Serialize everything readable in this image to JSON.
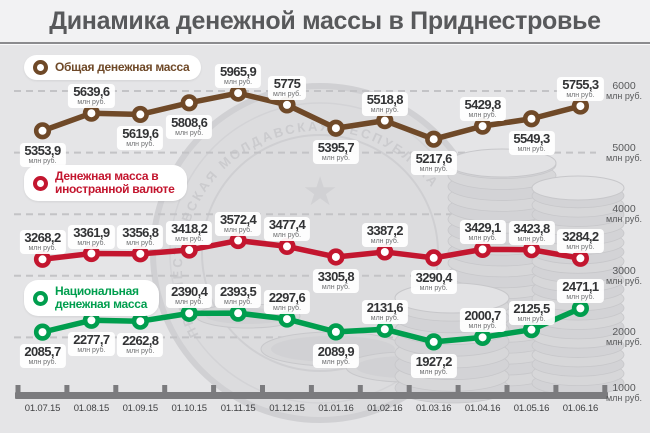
{
  "title": "Динамика денежной массы в Приднестровье",
  "axis": {
    "unit": "млн руб.",
    "y_ticks": [
      6000,
      5000,
      4000,
      3000,
      2000,
      1000
    ],
    "x_labels": [
      "01.07.15",
      "01.08.15",
      "01.09.15",
      "01.10.15",
      "01.11.15",
      "01.12.15",
      "01.01.16",
      "01.02.16",
      "01.03.16",
      "01.04.16",
      "01.05.16",
      "01.06.16"
    ]
  },
  "legend": [
    {
      "id": "total",
      "lines": [
        "Общая денежная масса"
      ],
      "color": "#6F4928"
    },
    {
      "id": "foreign",
      "lines": [
        "Денежная масса в",
        "иностранной валюте"
      ],
      "color": "#C3162F"
    },
    {
      "id": "national",
      "lines": [
        "Национальная",
        "денежная масса"
      ],
      "color": "#009E4E"
    }
  ],
  "chart_data": {
    "type": "line",
    "categories": [
      "01.07.15",
      "01.08.15",
      "01.09.15",
      "01.10.15",
      "01.11.15",
      "01.12.15",
      "01.01.16",
      "01.02.16",
      "01.03.16",
      "01.04.16",
      "01.05.16",
      "01.06.16"
    ],
    "series": [
      {
        "id": "total",
        "name": "Общая денежная масса",
        "color": "#6F4928",
        "values": [
          5353.9,
          5639.6,
          5619.6,
          5808.6,
          5965.9,
          5775,
          5395.7,
          5518.8,
          5217.6,
          5429.8,
          5549.3,
          5755.3
        ],
        "label_side": [
          "below",
          "above",
          "below",
          "below",
          "above",
          "above",
          "below",
          "above",
          "below",
          "above",
          "below",
          "above"
        ]
      },
      {
        "id": "foreign",
        "name": "Денежная масса в иностранной валюте",
        "color": "#C3162F",
        "values": [
          3268.2,
          3361.9,
          3356.8,
          3418.2,
          3572.4,
          3477.4,
          3305.8,
          3387.2,
          3290.4,
          3429.1,
          3423.8,
          3284.2
        ],
        "label_side": [
          "above",
          "above",
          "above",
          "above",
          "above",
          "above",
          "below",
          "above",
          "below",
          "above",
          "above",
          "above"
        ]
      },
      {
        "id": "national",
        "name": "Национальная денежная масса",
        "color": "#009E4E",
        "values": [
          2085.7,
          2277.7,
          2262.8,
          2390.4,
          2393.5,
          2297.6,
          2089.9,
          2131.6,
          1927.2,
          2000.7,
          2125.5,
          2471.1
        ],
        "label_side": [
          "below",
          "below",
          "below",
          "above",
          "above",
          "above",
          "below",
          "above",
          "below",
          "above",
          "above",
          "above"
        ]
      }
    ],
    "title": "Динамика денежной массы в Приднестровье",
    "xlabel": "",
    "ylabel": "млн руб.",
    "value_unit": "млн руб.",
    "yticks": [
      6000,
      5000,
      4000,
      3000,
      2000,
      1000
    ],
    "ylim": [
      1000,
      6150
    ],
    "grid": "horizontal-dashed",
    "legend_position": "left-stacked-per-series",
    "watermark_text": "ПРИДНЕСТРОВСКАЯ МОЛДАВСКАЯ РЕСПУБЛИКА"
  },
  "colors": {
    "background": "#e5e5e7",
    "title_bg": "#f2f2f3",
    "title_text": "#58595b",
    "total": "#6F4928",
    "foreign": "#C3162F",
    "national": "#009E4E",
    "grid": "#c3c3c6",
    "axis_bar": "#7b7b7e",
    "value_text": "#323335",
    "unit_text": "#6e6f71"
  }
}
